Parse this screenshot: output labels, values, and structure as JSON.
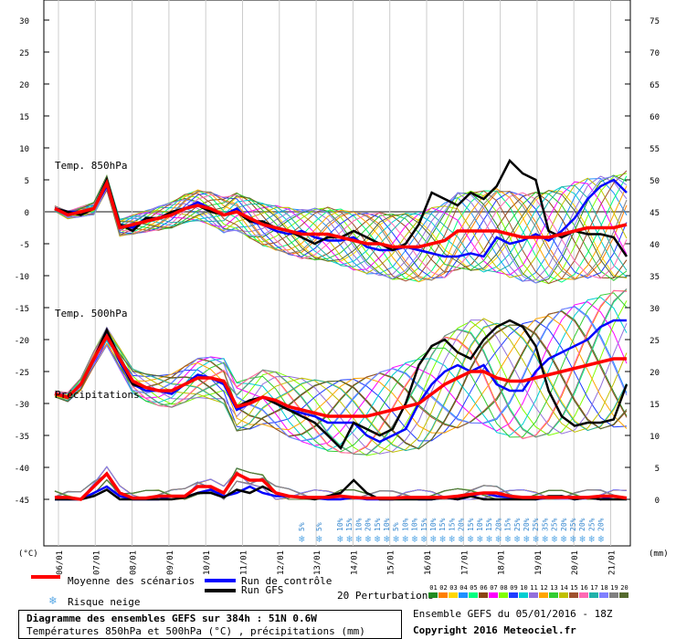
{
  "chart_data": {
    "type": "line",
    "title": "Diagramme des ensembles GEFS sur 384h : 51N 0.6W",
    "subtitle": "Températures 850hPa et 500hPa (°C) , précipitations (mm)",
    "left_unit": "(°C)",
    "right_unit": "(mm)",
    "left_ticks": [
      30,
      25,
      20,
      15,
      10,
      5,
      0,
      -5,
      -10,
      -15,
      -20,
      -25,
      -30,
      -35,
      -40,
      -45
    ],
    "right_ticks": [
      75,
      70,
      65,
      60,
      55,
      50,
      45,
      40,
      35,
      30,
      25,
      20,
      15,
      10,
      5,
      0
    ],
    "ylim": [
      -45,
      30
    ],
    "dates": [
      "06/01",
      "07/01",
      "08/01",
      "09/01",
      "10/01",
      "11/01",
      "12/01",
      "13/01",
      "14/01",
      "15/01",
      "16/01",
      "17/01",
      "18/01",
      "19/01",
      "20/01",
      "21/01"
    ],
    "panel_labels": {
      "t850": "Temp. 850hPa",
      "t500": "Temp. 500hPa",
      "precip": "Précipitations"
    },
    "snow_risk": [
      "5%",
      "5%",
      "10%",
      "15%",
      "10%",
      "20%",
      "15%",
      "10%",
      "5%",
      "10%",
      "10%",
      "15%",
      "10%",
      "15%",
      "15%",
      "20%",
      "15%",
      "10%",
      "15%",
      "20%",
      "15%",
      "25%",
      "20%",
      "25%",
      "35%",
      "25%",
      "20%",
      "25%",
      "20%",
      "25%",
      "20%"
    ],
    "t850_mean": [
      0.5,
      -0.5,
      0,
      0.5,
      4.5,
      -2.5,
      -2,
      -1.5,
      -1,
      -0.5,
      0.5,
      1,
      0.5,
      -0.5,
      0,
      -1,
      -2,
      -2.5,
      -3,
      -3.5,
      -3.5,
      -3.5,
      -4,
      -4.5,
      -5,
      -5,
      -5.5,
      -5.5,
      -5.5,
      -5,
      -4.5,
      -3,
      -3,
      -3,
      -3,
      -3.5,
      -4,
      -4,
      -4,
      -3.5,
      -3,
      -2.5,
      -2.5,
      -2.5,
      -2
    ],
    "t850_control": [
      0.5,
      0,
      0,
      0.5,
      4,
      -2,
      -2.5,
      -1,
      -1,
      0,
      0.5,
      1.5,
      0.5,
      -0.5,
      0.5,
      -1.5,
      -2,
      -3,
      -3.5,
      -3,
      -4,
      -4.5,
      -4.5,
      -4,
      -5.5,
      -6,
      -6,
      -5.5,
      -6,
      -6.5,
      -7,
      -7,
      -6.5,
      -7,
      -4,
      -5,
      -4.5,
      -3.5,
      -4.5,
      -3,
      -1,
      2,
      4,
      5,
      3
    ],
    "t850_gfs": [
      0.5,
      0,
      -0.5,
      0.5,
      5,
      -2,
      -3,
      -1,
      -1,
      0,
      0.5,
      1,
      0,
      -0.5,
      0,
      -1.5,
      -1.5,
      -2.5,
      -3,
      -4,
      -5,
      -4,
      -4,
      -3,
      -4,
      -5,
      -6,
      -5,
      -2,
      3,
      2,
      1,
      3,
      2,
      4,
      8,
      6,
      5,
      -3,
      -4,
      -3,
      -3.5,
      -3.5,
      -4,
      -7
    ],
    "t500_mean": [
      -28.5,
      -29,
      -27,
      -23,
      -19.5,
      -23,
      -26.5,
      -27.5,
      -28,
      -28,
      -27,
      -26,
      -26,
      -26.5,
      -30.5,
      -30,
      -29,
      -29.5,
      -30.5,
      -31,
      -31.5,
      -32,
      -32,
      -32,
      -32,
      -31.5,
      -31,
      -30.5,
      -30,
      -28.5,
      -27,
      -26,
      -25,
      -25,
      -26,
      -26.5,
      -26.5,
      -26,
      -25.5,
      -25,
      -24.5,
      -24,
      -23.5,
      -23,
      -23
    ],
    "t500_control": [
      -28.5,
      -29,
      -27,
      -23,
      -19,
      -23.5,
      -27,
      -28,
      -28,
      -28.5,
      -27,
      -25.5,
      -26,
      -27,
      -31,
      -30,
      -29,
      -30,
      -31,
      -31.5,
      -32,
      -33,
      -33,
      -33,
      -35,
      -36,
      -35,
      -34,
      -30,
      -27,
      -25,
      -24,
      -25,
      -24,
      -27,
      -28,
      -28,
      -25,
      -23,
      -22,
      -21,
      -20,
      -18,
      -17,
      -17
    ],
    "t500_gfs": [
      -28.5,
      -29,
      -27,
      -23,
      -18.5,
      -23,
      -27,
      -27.5,
      -28,
      -28,
      -27,
      -26,
      -26,
      -26.5,
      -30.5,
      -29.5,
      -29,
      -30,
      -31,
      -32,
      -33,
      -35,
      -37,
      -33,
      -34,
      -35,
      -34,
      -30,
      -24,
      -21,
      -20,
      -22,
      -23,
      -20,
      -18,
      -17,
      -18,
      -21,
      -28,
      -32,
      -33.5,
      -33,
      -33,
      -32.5,
      -27
    ],
    "precip_mean": [
      0.3,
      0.3,
      0,
      2,
      4,
      1,
      0.2,
      0.2,
      0.5,
      0.5,
      0.5,
      2,
      2,
      1,
      4,
      3,
      3,
      1,
      0.5,
      0.3,
      0.3,
      0.3,
      0.5,
      0.3,
      0.2,
      0.2,
      0.2,
      0.3,
      0.3,
      0.3,
      0.3,
      0.5,
      0.8,
      1,
      1,
      0.5,
      0.3,
      0.3,
      0.3,
      0.3,
      0.3,
      0.3,
      0.5,
      0.5,
      0.2
    ],
    "precip_control": [
      0,
      0,
      0,
      1,
      2,
      0.5,
      0,
      0,
      0,
      0.5,
      0.3,
      1,
      1.5,
      0.5,
      1,
      2,
      1,
      0.5,
      0.5,
      0.3,
      0.2,
      0,
      0,
      0.3,
      0,
      0,
      0,
      0.3,
      0,
      0,
      0.3,
      0,
      0.5,
      1,
      0.5,
      0.3,
      0.3,
      0,
      0.3,
      0.5,
      0,
      0.3,
      0,
      0.5,
      0
    ],
    "precip_gfs": [
      0,
      0,
      0,
      0.5,
      1.5,
      0,
      0,
      0,
      0,
      0,
      0.3,
      1,
      1,
      0.3,
      1.5,
      1,
      2,
      1,
      0.5,
      0.3,
      0,
      0.5,
      1,
      3,
      1,
      0,
      0,
      0,
      0,
      0,
      0.3,
      0,
      0.5,
      0,
      0,
      0,
      0,
      0,
      0.5,
      0.5,
      0,
      0.3,
      0,
      0,
      0
    ]
  },
  "legend": {
    "mean": "Moyenne des scénarios",
    "control": "Run de contrôle",
    "gfs": "Run GFS",
    "snow": "Risque neige",
    "perturbations": "20 Perturbations",
    "pert_numbers": [
      "01",
      "02",
      "03",
      "04",
      "05",
      "06",
      "07",
      "08",
      "09",
      "10",
      "11",
      "12",
      "13",
      "14",
      "15",
      "16",
      "17",
      "18",
      "19",
      "20"
    ],
    "pert_colors": [
      "#228b22",
      "#ff7f00",
      "#ffd700",
      "#1e90ff",
      "#00ff7f",
      "#8b4513",
      "#ff00ff",
      "#7fff00",
      "#1e3cff",
      "#00ced1",
      "#9370db",
      "#ffa500",
      "#32cd32",
      "#c0c000",
      "#a0522d",
      "#ff69b4",
      "#20b2aa",
      "#8080ff",
      "#808080",
      "#556b2f"
    ],
    "mean_color": "#ff0000",
    "control_color": "#0000ff",
    "gfs_color": "#000000"
  },
  "info": {
    "title": "Diagramme des ensembles GEFS sur 384h : 51N 0.6W",
    "subtitle": "Températures 850hPa et 500hPa (°C) , précipitations (mm)",
    "run": "Ensemble GEFS du 05/01/2016 - 18Z",
    "copyright": "Copyright 2016 Meteociel.fr"
  }
}
